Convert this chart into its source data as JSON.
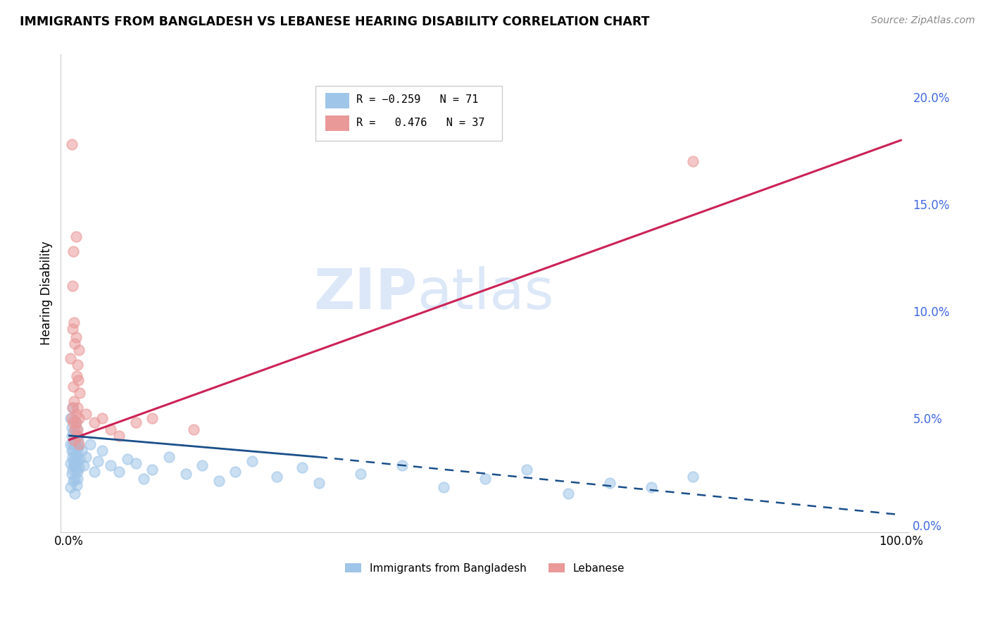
{
  "title": "IMMIGRANTS FROM BANGLADESH VS LEBANESE HEARING DISABILITY CORRELATION CHART",
  "source": "Source: ZipAtlas.com",
  "ylabel": "Hearing Disability",
  "legend_label1": "Immigrants from Bangladesh",
  "legend_label2": "Lebanese",
  "blue_color": "#9fc5e8",
  "pink_color": "#ea9999",
  "trendline_blue": "#1a4f8a",
  "trendline_pink": "#cc2255",
  "watermark_zip": "ZIP",
  "watermark_atlas": "atlas",
  "watermark_color": "#dce8f8",
  "right_axis_color": "#4169e1",
  "scatter_blue": [
    [
      0.2,
      3.8
    ],
    [
      0.3,
      4.2
    ],
    [
      0.4,
      5.5
    ],
    [
      0.5,
      3.5
    ],
    [
      0.6,
      4.1
    ],
    [
      0.7,
      3.9
    ],
    [
      0.8,
      4.8
    ],
    [
      0.9,
      3.2
    ],
    [
      1.0,
      3.6
    ],
    [
      1.1,
      4.0
    ],
    [
      0.2,
      2.9
    ],
    [
      0.3,
      3.5
    ],
    [
      0.4,
      3.8
    ],
    [
      0.5,
      4.4
    ],
    [
      0.6,
      3.1
    ],
    [
      0.7,
      2.8
    ],
    [
      0.8,
      3.3
    ],
    [
      0.9,
      4.5
    ],
    [
      1.0,
      2.5
    ],
    [
      1.1,
      3.7
    ],
    [
      0.2,
      5.0
    ],
    [
      0.3,
      4.6
    ],
    [
      0.4,
      2.6
    ],
    [
      0.5,
      3.0
    ],
    [
      0.6,
      4.9
    ],
    [
      0.7,
      2.2
    ],
    [
      0.8,
      3.8
    ],
    [
      0.9,
      2.9
    ],
    [
      1.0,
      4.2
    ],
    [
      1.2,
      2.7
    ],
    [
      0.2,
      1.8
    ],
    [
      0.3,
      2.4
    ],
    [
      0.4,
      3.2
    ],
    [
      0.5,
      2.1
    ],
    [
      0.6,
      2.8
    ],
    [
      0.7,
      1.5
    ],
    [
      0.8,
      2.6
    ],
    [
      0.9,
      1.9
    ],
    [
      1.0,
      2.2
    ],
    [
      1.3,
      3.1
    ],
    [
      1.5,
      3.5
    ],
    [
      1.8,
      2.8
    ],
    [
      2.0,
      3.2
    ],
    [
      2.5,
      3.8
    ],
    [
      3.0,
      2.5
    ],
    [
      3.5,
      3.0
    ],
    [
      4.0,
      3.5
    ],
    [
      5.0,
      2.8
    ],
    [
      6.0,
      2.5
    ],
    [
      7.0,
      3.1
    ],
    [
      8.0,
      2.9
    ],
    [
      9.0,
      2.2
    ],
    [
      10.0,
      2.6
    ],
    [
      12.0,
      3.2
    ],
    [
      14.0,
      2.4
    ],
    [
      16.0,
      2.8
    ],
    [
      18.0,
      2.1
    ],
    [
      20.0,
      2.5
    ],
    [
      22.0,
      3.0
    ],
    [
      25.0,
      2.3
    ],
    [
      28.0,
      2.7
    ],
    [
      30.0,
      2.0
    ],
    [
      35.0,
      2.4
    ],
    [
      40.0,
      2.8
    ],
    [
      45.0,
      1.8
    ],
    [
      50.0,
      2.2
    ],
    [
      55.0,
      2.6
    ],
    [
      60.0,
      1.5
    ],
    [
      65.0,
      2.0
    ],
    [
      70.0,
      1.8
    ],
    [
      75.0,
      2.3
    ]
  ],
  "scatter_pink": [
    [
      0.3,
      17.8
    ],
    [
      0.5,
      12.8
    ],
    [
      0.8,
      13.5
    ],
    [
      0.4,
      11.2
    ],
    [
      0.6,
      9.5
    ],
    [
      0.8,
      8.8
    ],
    [
      1.0,
      7.5
    ],
    [
      1.2,
      8.2
    ],
    [
      0.4,
      9.2
    ],
    [
      0.7,
      8.5
    ],
    [
      0.9,
      7.0
    ],
    [
      1.1,
      6.8
    ],
    [
      1.3,
      6.2
    ],
    [
      0.2,
      7.8
    ],
    [
      0.5,
      6.5
    ],
    [
      0.6,
      5.8
    ],
    [
      0.8,
      5.2
    ],
    [
      1.0,
      5.5
    ],
    [
      0.3,
      5.0
    ],
    [
      0.5,
      4.8
    ],
    [
      0.7,
      4.5
    ],
    [
      1.0,
      4.2
    ],
    [
      1.2,
      5.0
    ],
    [
      0.4,
      5.5
    ],
    [
      0.6,
      4.0
    ],
    [
      0.8,
      4.8
    ],
    [
      1.0,
      4.5
    ],
    [
      1.2,
      3.8
    ],
    [
      2.0,
      5.2
    ],
    [
      3.0,
      4.8
    ],
    [
      4.0,
      5.0
    ],
    [
      5.0,
      4.5
    ],
    [
      6.0,
      4.2
    ],
    [
      8.0,
      4.8
    ],
    [
      10.0,
      5.0
    ],
    [
      15.0,
      4.5
    ],
    [
      75.0,
      17.0
    ]
  ],
  "xlim": [
    0,
    100
  ],
  "ylim": [
    0,
    22
  ],
  "yticks_right": [
    0.0,
    5.0,
    10.0,
    15.0,
    20.0
  ],
  "ytick_labels_right": [
    "0.0%",
    "5.0%",
    "10.0%",
    "15.0%",
    "20.0%"
  ],
  "xticks": [
    0,
    20,
    40,
    60,
    80,
    100
  ],
  "xtick_labels": [
    "0.0%",
    "",
    "",
    "",
    "",
    "100.0%"
  ],
  "grid_color": "#d9d9d9",
  "pink_trend_x0": 0.0,
  "pink_trend_y0": 4.0,
  "pink_trend_x1": 100.0,
  "pink_trend_y1": 18.0,
  "blue_trend_solid_x0": 0.0,
  "blue_trend_solid_y0": 4.2,
  "blue_trend_solid_x1": 30.0,
  "blue_trend_solid_y1": 3.2,
  "blue_trend_dash_x0": 30.0,
  "blue_trend_dash_y0": 3.2,
  "blue_trend_dash_x1": 100.0,
  "blue_trend_dash_y1": 0.5
}
